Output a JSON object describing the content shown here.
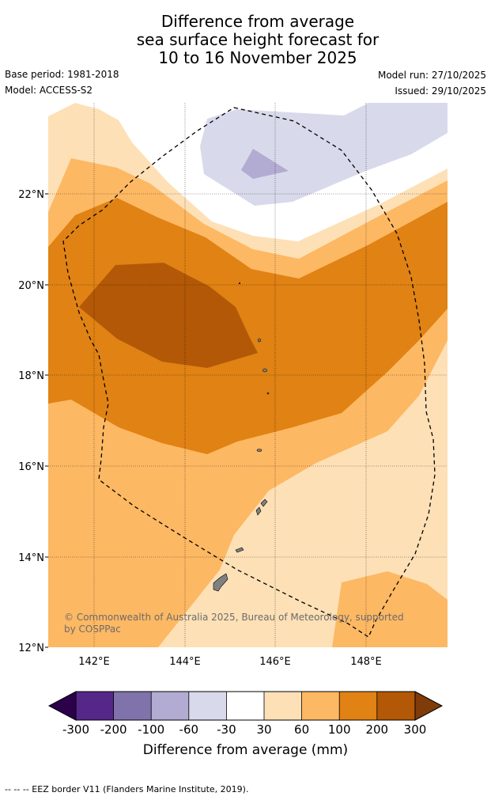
{
  "title_lines": [
    "Difference from average",
    "sea surface height forecast for",
    "10 to 16 November 2025"
  ],
  "meta": {
    "base_period": "Base period: 1981-2018",
    "model": "Model: ACCESS-S2",
    "model_run": "Model run: 27/10/2025",
    "issued": "Issued: 29/10/2025"
  },
  "map": {
    "latitude_labels": [
      "22°N",
      "20°N",
      "18°N",
      "16°N",
      "14°N",
      "12°N"
    ],
    "longitude_labels": [
      "142°E",
      "144°E",
      "146°E",
      "148°E"
    ],
    "copyright": "© Commonwealth of Australia 2025, Bureau of Meteorology, supported by COSPPac",
    "legend_note": "-- -- -- EEZ border V11 (Flanders Marine Institute, 2019)."
  },
  "colorbar": {
    "title": "Difference from average (mm)",
    "tick_labels": [
      "-300",
      "-200",
      "-100",
      "-60",
      "-30",
      "30",
      "60",
      "100",
      "200",
      "300"
    ],
    "colors": [
      "#2d004b",
      "#542788",
      "#8073ac",
      "#b2abd2",
      "#d8daeb",
      "#ffffff",
      "#fee0b6",
      "#fdb863",
      "#e08214",
      "#b35806",
      "#7f3b08"
    ]
  }
}
